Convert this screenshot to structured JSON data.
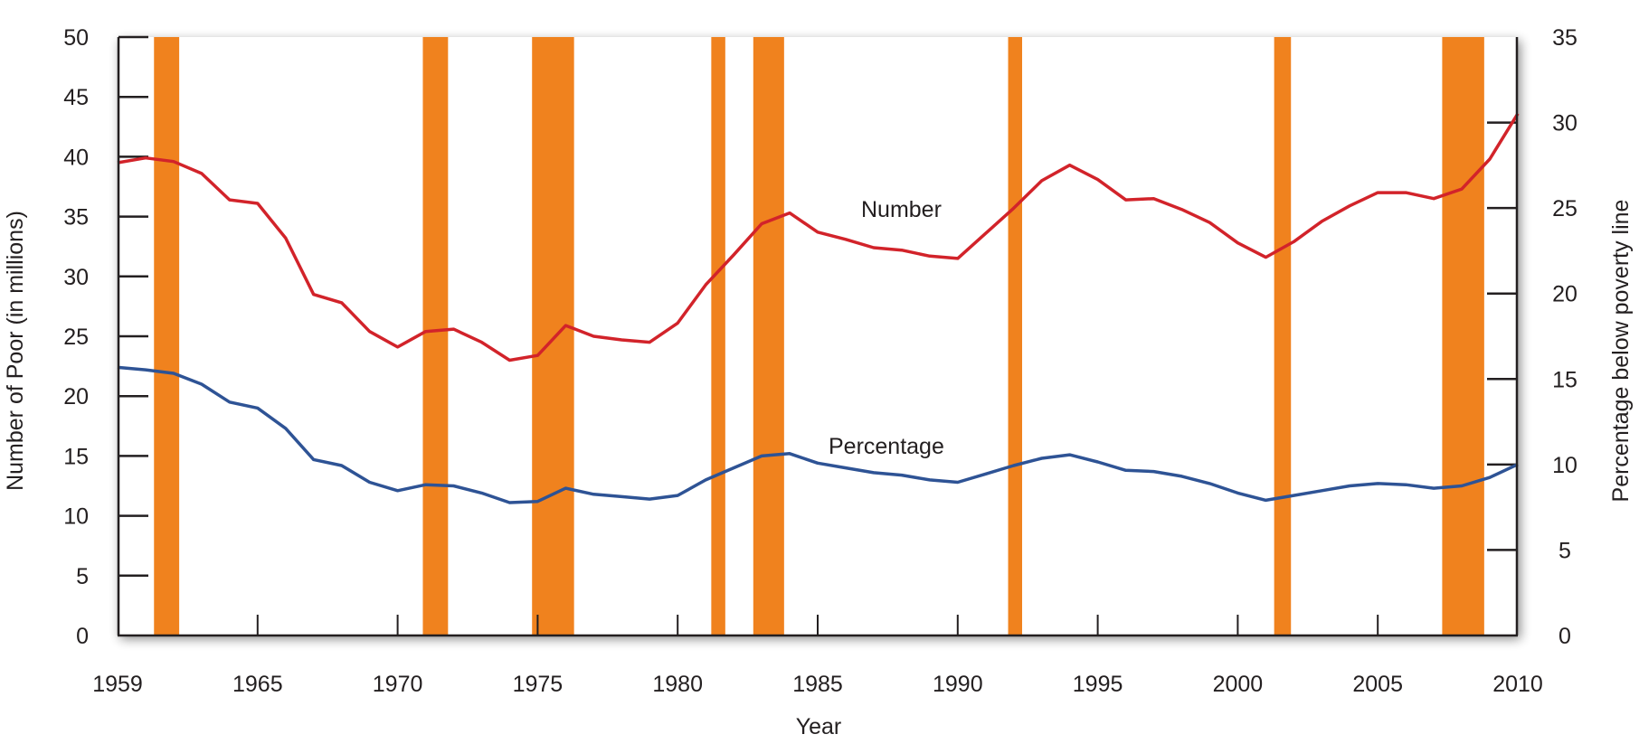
{
  "chart_data": {
    "type": "line",
    "title": "",
    "xlabel": "Year",
    "ylabel_left": "Number of Poor (in millions)",
    "ylabel_right": "Percentage below poverty line",
    "xlim": [
      1959,
      2009
    ],
    "ylim_left": [
      0,
      50
    ],
    "ylim_right": [
      0,
      35
    ],
    "grid": false,
    "x_tick_labels": [
      "1959",
      "1965",
      "1970",
      "1975",
      "1980",
      "1985",
      "1990",
      "1995",
      "2000",
      "2005",
      "2010"
    ],
    "y_left_ticks": [
      0,
      5,
      10,
      15,
      20,
      25,
      30,
      35,
      40,
      45,
      50
    ],
    "y_right_ticks": [
      0,
      5,
      10,
      15,
      20,
      25,
      30,
      35
    ],
    "x": [
      1959,
      1960,
      1961,
      1962,
      1963,
      1964,
      1965,
      1966,
      1967,
      1968,
      1969,
      1970,
      1971,
      1972,
      1973,
      1974,
      1975,
      1976,
      1977,
      1978,
      1979,
      1980,
      1981,
      1982,
      1983,
      1984,
      1985,
      1986,
      1987,
      1988,
      1989,
      1990,
      1991,
      1992,
      1993,
      1994,
      1995,
      1996,
      1997,
      1998,
      1999,
      2000,
      2001,
      2002,
      2003,
      2004,
      2005,
      2006,
      2007,
      2008,
      2009
    ],
    "series": [
      {
        "name": "Number",
        "label": "Number",
        "color": "#d2232a",
        "values": [
          39.5,
          39.9,
          39.6,
          38.6,
          36.4,
          36.1,
          33.2,
          28.5,
          27.8,
          25.4,
          24.1,
          25.4,
          25.6,
          24.5,
          23.0,
          23.4,
          25.9,
          25.0,
          24.7,
          24.5,
          26.1,
          29.3,
          31.8,
          34.4,
          35.3,
          33.7,
          33.1,
          32.4,
          32.2,
          31.7,
          31.5,
          33.6,
          35.7,
          38.0,
          39.3,
          38.1,
          36.4,
          36.5,
          35.6,
          34.5,
          32.8,
          31.6,
          32.9,
          34.6,
          35.9,
          37.0,
          37.0,
          36.5,
          37.3,
          39.8,
          43.6
        ]
      },
      {
        "name": "Percentage",
        "label": "Percentage",
        "color": "#2e5395",
        "values": [
          22.4,
          22.2,
          21.9,
          21.0,
          19.5,
          19.0,
          17.3,
          14.7,
          14.2,
          12.8,
          12.1,
          12.6,
          12.5,
          11.9,
          11.1,
          11.2,
          12.3,
          11.8,
          11.6,
          11.4,
          11.7,
          13.0,
          14.0,
          15.0,
          15.2,
          14.4,
          14.0,
          13.6,
          13.4,
          13.0,
          12.8,
          13.5,
          14.2,
          14.8,
          15.1,
          14.5,
          13.8,
          13.7,
          13.3,
          12.7,
          11.9,
          11.3,
          11.7,
          12.1,
          12.5,
          12.7,
          12.6,
          12.3,
          12.5,
          13.2,
          14.3
        ]
      }
    ],
    "shaded_periods": [
      [
        1960.3,
        1961.2
      ],
      [
        1969.9,
        1970.8
      ],
      [
        1973.8,
        1975.3
      ],
      [
        1980.2,
        1980.7
      ],
      [
        1981.7,
        1982.8
      ],
      [
        1990.8,
        1991.3
      ],
      [
        2000.3,
        2000.9
      ],
      [
        2006.3,
        2007.8
      ]
    ],
    "shade_color": "#f0821e"
  }
}
